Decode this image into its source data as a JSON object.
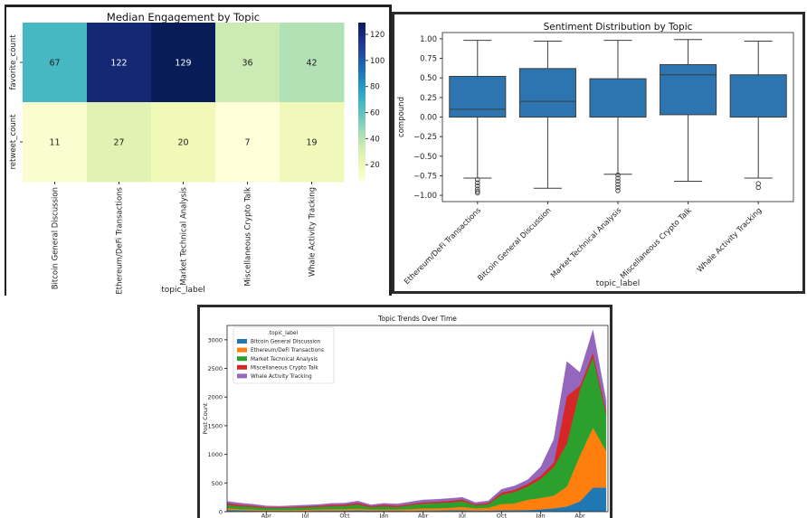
{
  "colors": {
    "box_fill": "#2c75b0",
    "box_edge": "#3d3d3d",
    "area_series": [
      "#1f77b4",
      "#ff7f0e",
      "#2ca02c",
      "#d62728",
      "#9467bd"
    ],
    "heat_stops": [
      "#ffffd9",
      "#edf8b1",
      "#c7e9b4",
      "#7fcdbb",
      "#41b6c4",
      "#1d91c0",
      "#225ea8",
      "#253494",
      "#081d58"
    ]
  },
  "chart_data": [
    {
      "type": "heatmap",
      "title": "Median Engagement by Topic",
      "xlabel": "topic_label",
      "ylabel": "",
      "rows": [
        "favorite_count",
        "retweet_count"
      ],
      "columns": [
        "Bitcoin General Discussion",
        "Ethereum/DeFi Transactions",
        "Market Technical Analysis",
        "Miscellaneous Crypto Talk",
        "Whale Activity Tracking"
      ],
      "values": [
        [
          67,
          122,
          129,
          36,
          42
        ],
        [
          11,
          27,
          20,
          7,
          19
        ]
      ],
      "colorbar": {
        "min": 7,
        "max": 129,
        "ticks": [
          20,
          40,
          60,
          80,
          100,
          120
        ]
      }
    },
    {
      "type": "box",
      "title": "Sentiment Distribution by Topic",
      "xlabel": "topic_label",
      "ylabel": "compound",
      "ylim": [
        -1.08,
        1.08
      ],
      "yticks": [
        "1.00",
        "0.75",
        "0.50",
        "0.25",
        "0.00",
        "−0.25",
        "−0.50",
        "−0.75",
        "−1.00"
      ],
      "ytick_values": [
        1.0,
        0.75,
        0.5,
        0.25,
        0.0,
        -0.25,
        -0.5,
        -0.75,
        -1.0
      ],
      "categories": [
        "Ethereum/DeFi Transactions",
        "Bitcoin General Discussion",
        "Market Technical Analysis",
        "Miscellaneous Crypto Talk",
        "Whale Activity Tracking"
      ],
      "boxes": [
        {
          "whisker_low": -0.78,
          "q1": 0.0,
          "median": 0.1,
          "q3": 0.52,
          "whisker_high": 0.98,
          "outliers": [
            -0.8,
            -0.84,
            -0.88,
            -0.92,
            -0.95,
            -0.97
          ]
        },
        {
          "whisker_low": -0.91,
          "q1": 0.0,
          "median": 0.2,
          "q3": 0.62,
          "whisker_high": 0.97,
          "outliers": []
        },
        {
          "whisker_low": -0.73,
          "q1": 0.0,
          "median": 0.0,
          "q3": 0.49,
          "whisker_high": 0.98,
          "outliers": [
            -0.74,
            -0.78,
            -0.82,
            -0.86,
            -0.9,
            -0.94
          ]
        },
        {
          "whisker_low": -0.82,
          "q1": 0.03,
          "median": 0.54,
          "q3": 0.67,
          "whisker_high": 0.99,
          "outliers": []
        },
        {
          "whisker_low": -0.78,
          "q1": 0.0,
          "median": 0.0,
          "q3": 0.54,
          "whisker_high": 0.97,
          "outliers": [
            -0.85,
            -0.9
          ]
        }
      ]
    },
    {
      "type": "area",
      "title": "Topic Trends Over Time",
      "xlabel": "",
      "ylabel": "Post Count",
      "ylim": [
        0,
        3250
      ],
      "yticks": [
        0,
        500,
        1000,
        1500,
        2000,
        2500,
        3000
      ],
      "xlim": [
        0,
        27
      ],
      "x_ticks": [
        {
          "label": "Apr",
          "x": 3
        },
        {
          "label": "Jul",
          "x": 6
        },
        {
          "label": "Oct",
          "x": 9
        },
        {
          "label": "Jan",
          "x": 12
        },
        {
          "label": "Apr",
          "x": 15
        },
        {
          "label": "Jul",
          "x": 18
        },
        {
          "label": "Oct",
          "x": 21
        },
        {
          "label": "Jan",
          "x": 24
        },
        {
          "label": "Apr",
          "x": 27
        }
      ],
      "legend_title": "topic_label",
      "legend_position": "upper-left",
      "x": [
        0,
        1,
        2,
        3,
        4,
        5,
        6,
        7,
        8,
        9,
        10,
        11,
        12,
        13,
        14,
        15,
        16,
        17,
        18,
        19,
        20,
        21,
        22,
        23,
        24,
        25,
        26,
        27,
        28,
        29
      ],
      "series": [
        {
          "name": "Bitcoin General Discussion",
          "values": [
            30,
            25,
            20,
            15,
            15,
            15,
            15,
            20,
            20,
            20,
            25,
            20,
            20,
            20,
            15,
            20,
            20,
            25,
            25,
            20,
            20,
            25,
            25,
            30,
            40,
            60,
            90,
            180,
            420,
            420
          ]
        },
        {
          "name": "Ethereum/DeFi Transactions",
          "values": [
            30,
            20,
            20,
            15,
            15,
            15,
            20,
            20,
            25,
            25,
            30,
            20,
            20,
            20,
            30,
            40,
            40,
            45,
            60,
            40,
            50,
            110,
            120,
            180,
            200,
            220,
            350,
            800,
            1050,
            640
          ]
        },
        {
          "name": "Market Technical Analysis",
          "values": [
            60,
            50,
            45,
            35,
            35,
            40,
            40,
            45,
            50,
            55,
            70,
            40,
            55,
            40,
            70,
            80,
            90,
            90,
            100,
            50,
            60,
            160,
            200,
            230,
            330,
            500,
            750,
            1150,
            1230,
            650
          ]
        },
        {
          "name": "Miscellaneous Crypto Talk",
          "values": [
            30,
            25,
            20,
            15,
            15,
            15,
            20,
            20,
            25,
            25,
            30,
            20,
            25,
            25,
            20,
            25,
            25,
            30,
            30,
            20,
            25,
            40,
            40,
            45,
            60,
            80,
            830,
            70,
            80,
            60
          ]
        },
        {
          "name": "Whale Activity Tracking",
          "values": [
            30,
            30,
            25,
            20,
            15,
            20,
            20,
            20,
            25,
            25,
            30,
            20,
            25,
            30,
            35,
            40,
            40,
            40,
            35,
            30,
            35,
            55,
            65,
            70,
            150,
            400,
            600,
            230,
            390,
            170
          ]
        }
      ]
    }
  ]
}
